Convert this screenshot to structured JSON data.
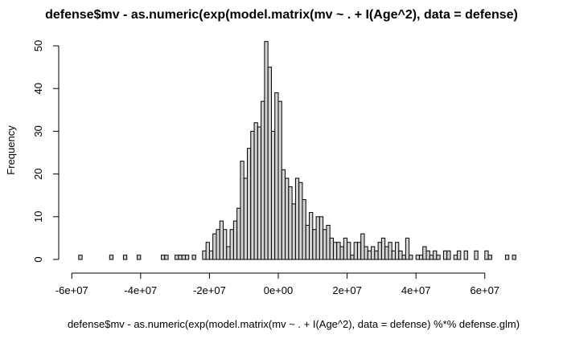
{
  "chart_data": {
    "type": "histogram",
    "title": "defense$mv - as.numeric(exp(model.matrix(mv ~ . + I(Age^2), data = defense)",
    "x_label": "defense$mv - as.numeric(exp(model.matrix(mv ~ . + I(Age^2), data = defense) %*% defense.glm)",
    "y_label": "Frequency",
    "bins": [
      -58000000.0,
      -57000000.0,
      -56000000.0,
      -55000000.0,
      -54000000.0,
      -53000000.0,
      -52000000.0,
      -51000000.0,
      -50000000.0,
      -49000000.0,
      -48000000.0,
      -47000000.0,
      -46000000.0,
      -45000000.0,
      -44000000.0,
      -43000000.0,
      -42000000.0,
      -41000000.0,
      -40000000.0,
      -39000000.0,
      -38000000.0,
      -37000000.0,
      -36000000.0,
      -35000000.0,
      -34000000.0,
      -33000000.0,
      -32000000.0,
      -31000000.0,
      -30000000.0,
      -29000000.0,
      -28000000.0,
      -27000000.0,
      -26000000.0,
      -25000000.0,
      -24000000.0,
      -23000000.0,
      -22000000.0,
      -21000000.0,
      -20000000.0,
      -19000000.0,
      -18000000.0,
      -17000000.0,
      -16000000.0,
      -15000000.0,
      -14000000.0,
      -13000000.0,
      -12000000.0,
      -11000000.0,
      -10000000.0,
      -9000000.0,
      -8000000.0,
      -7000000.0,
      -6000000.0,
      -5000000.0,
      -4000000.0,
      -3000000.0,
      -2000000.0,
      -1000000.0,
      0,
      1000000.0,
      2000000.0,
      3000000.0,
      4000000.0,
      5000000.0,
      6000000.0,
      7000000.0,
      8000000.0,
      9000000.0,
      10000000.0,
      11000000.0,
      12000000.0,
      13000000.0,
      14000000.0,
      15000000.0,
      16000000.0,
      17000000.0,
      18000000.0,
      19000000.0,
      20000000.0,
      21000000.0,
      22000000.0,
      23000000.0,
      24000000.0,
      25000000.0,
      26000000.0,
      27000000.0,
      28000000.0,
      29000000.0,
      30000000.0,
      31000000.0,
      32000000.0,
      33000000.0,
      34000000.0,
      35000000.0,
      36000000.0,
      37000000.0,
      38000000.0,
      39000000.0,
      40000000.0,
      41000000.0,
      42000000.0,
      43000000.0,
      44000000.0,
      45000000.0,
      46000000.0,
      47000000.0,
      48000000.0,
      49000000.0,
      50000000.0,
      51000000.0,
      52000000.0,
      53000000.0,
      54000000.0,
      55000000.0,
      56000000.0,
      57000000.0,
      58000000.0,
      59000000.0,
      60000000.0,
      61000000.0,
      62000000.0,
      63000000.0,
      64000000.0,
      65000000.0,
      66000000.0,
      67000000.0,
      68000000.0,
      69000000.0
    ],
    "values": [
      1,
      0,
      0,
      0,
      0,
      0,
      0,
      0,
      0,
      1,
      0,
      0,
      0,
      1,
      0,
      0,
      0,
      1,
      0,
      0,
      0,
      0,
      0,
      0,
      1,
      1,
      0,
      0,
      1,
      1,
      1,
      1,
      0,
      1,
      0,
      0,
      2,
      4,
      2,
      6,
      7,
      9,
      7,
      3,
      7,
      9,
      12,
      23,
      19,
      26,
      30,
      32,
      31,
      37,
      51,
      45,
      30,
      39,
      37,
      21,
      19,
      17,
      13,
      19,
      18,
      14,
      8,
      11,
      7,
      10,
      10,
      7,
      8,
      5,
      4,
      4,
      3,
      5,
      4,
      1,
      4,
      4,
      6,
      3,
      2,
      3,
      2,
      4,
      5,
      3,
      4,
      2,
      4,
      2,
      1,
      5,
      1,
      0,
      1,
      1,
      3,
      2,
      1,
      2,
      1,
      0,
      2,
      2,
      0,
      1,
      2,
      0,
      2,
      0,
      0,
      2,
      0,
      0,
      2,
      1,
      0,
      0,
      0,
      0,
      1,
      0,
      1
    ],
    "color": "#d3d3d3",
    "xlim": [
      -58000000.0,
      69000000.0
    ],
    "ylim": [
      0,
      51
    ],
    "xticks": [
      {
        "value": -60000000.0,
        "label": "-6e+07"
      },
      {
        "value": -40000000.0,
        "label": "-4e+07"
      },
      {
        "value": -20000000.0,
        "label": "-2e+07"
      },
      {
        "value": 0,
        "label": "0e+00"
      },
      {
        "value": 20000000.0,
        "label": "2e+07"
      },
      {
        "value": 40000000.0,
        "label": "4e+07"
      },
      {
        "value": 60000000.0,
        "label": "6e+07"
      }
    ],
    "yticks": [
      0,
      10,
      20,
      30,
      40,
      50
    ]
  }
}
